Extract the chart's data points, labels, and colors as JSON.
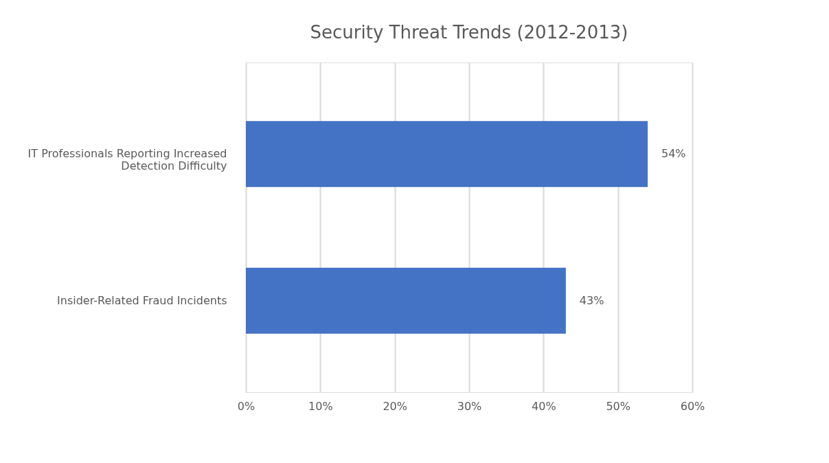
{
  "chart_data": {
    "type": "bar",
    "orientation": "horizontal",
    "title": "Security Threat Trends (2012-2013)",
    "categories": [
      "IT Professionals Reporting Increased Detection Difficulty",
      "Insider-Related Fraud Incidents"
    ],
    "values": [
      54,
      43
    ],
    "color": "#4472c4",
    "value_labels": [
      "54%",
      "43%"
    ],
    "xlim": [
      0,
      60
    ],
    "xticks": [
      {
        "value": 0,
        "label": "0%"
      },
      {
        "value": 10,
        "label": "10%"
      },
      {
        "value": 20,
        "label": "20%"
      },
      {
        "value": 30,
        "label": "30%"
      },
      {
        "value": 40,
        "label": "40%"
      },
      {
        "value": 50,
        "label": "50%"
      },
      {
        "value": 60,
        "label": "60%"
      }
    ],
    "grid": "x"
  }
}
